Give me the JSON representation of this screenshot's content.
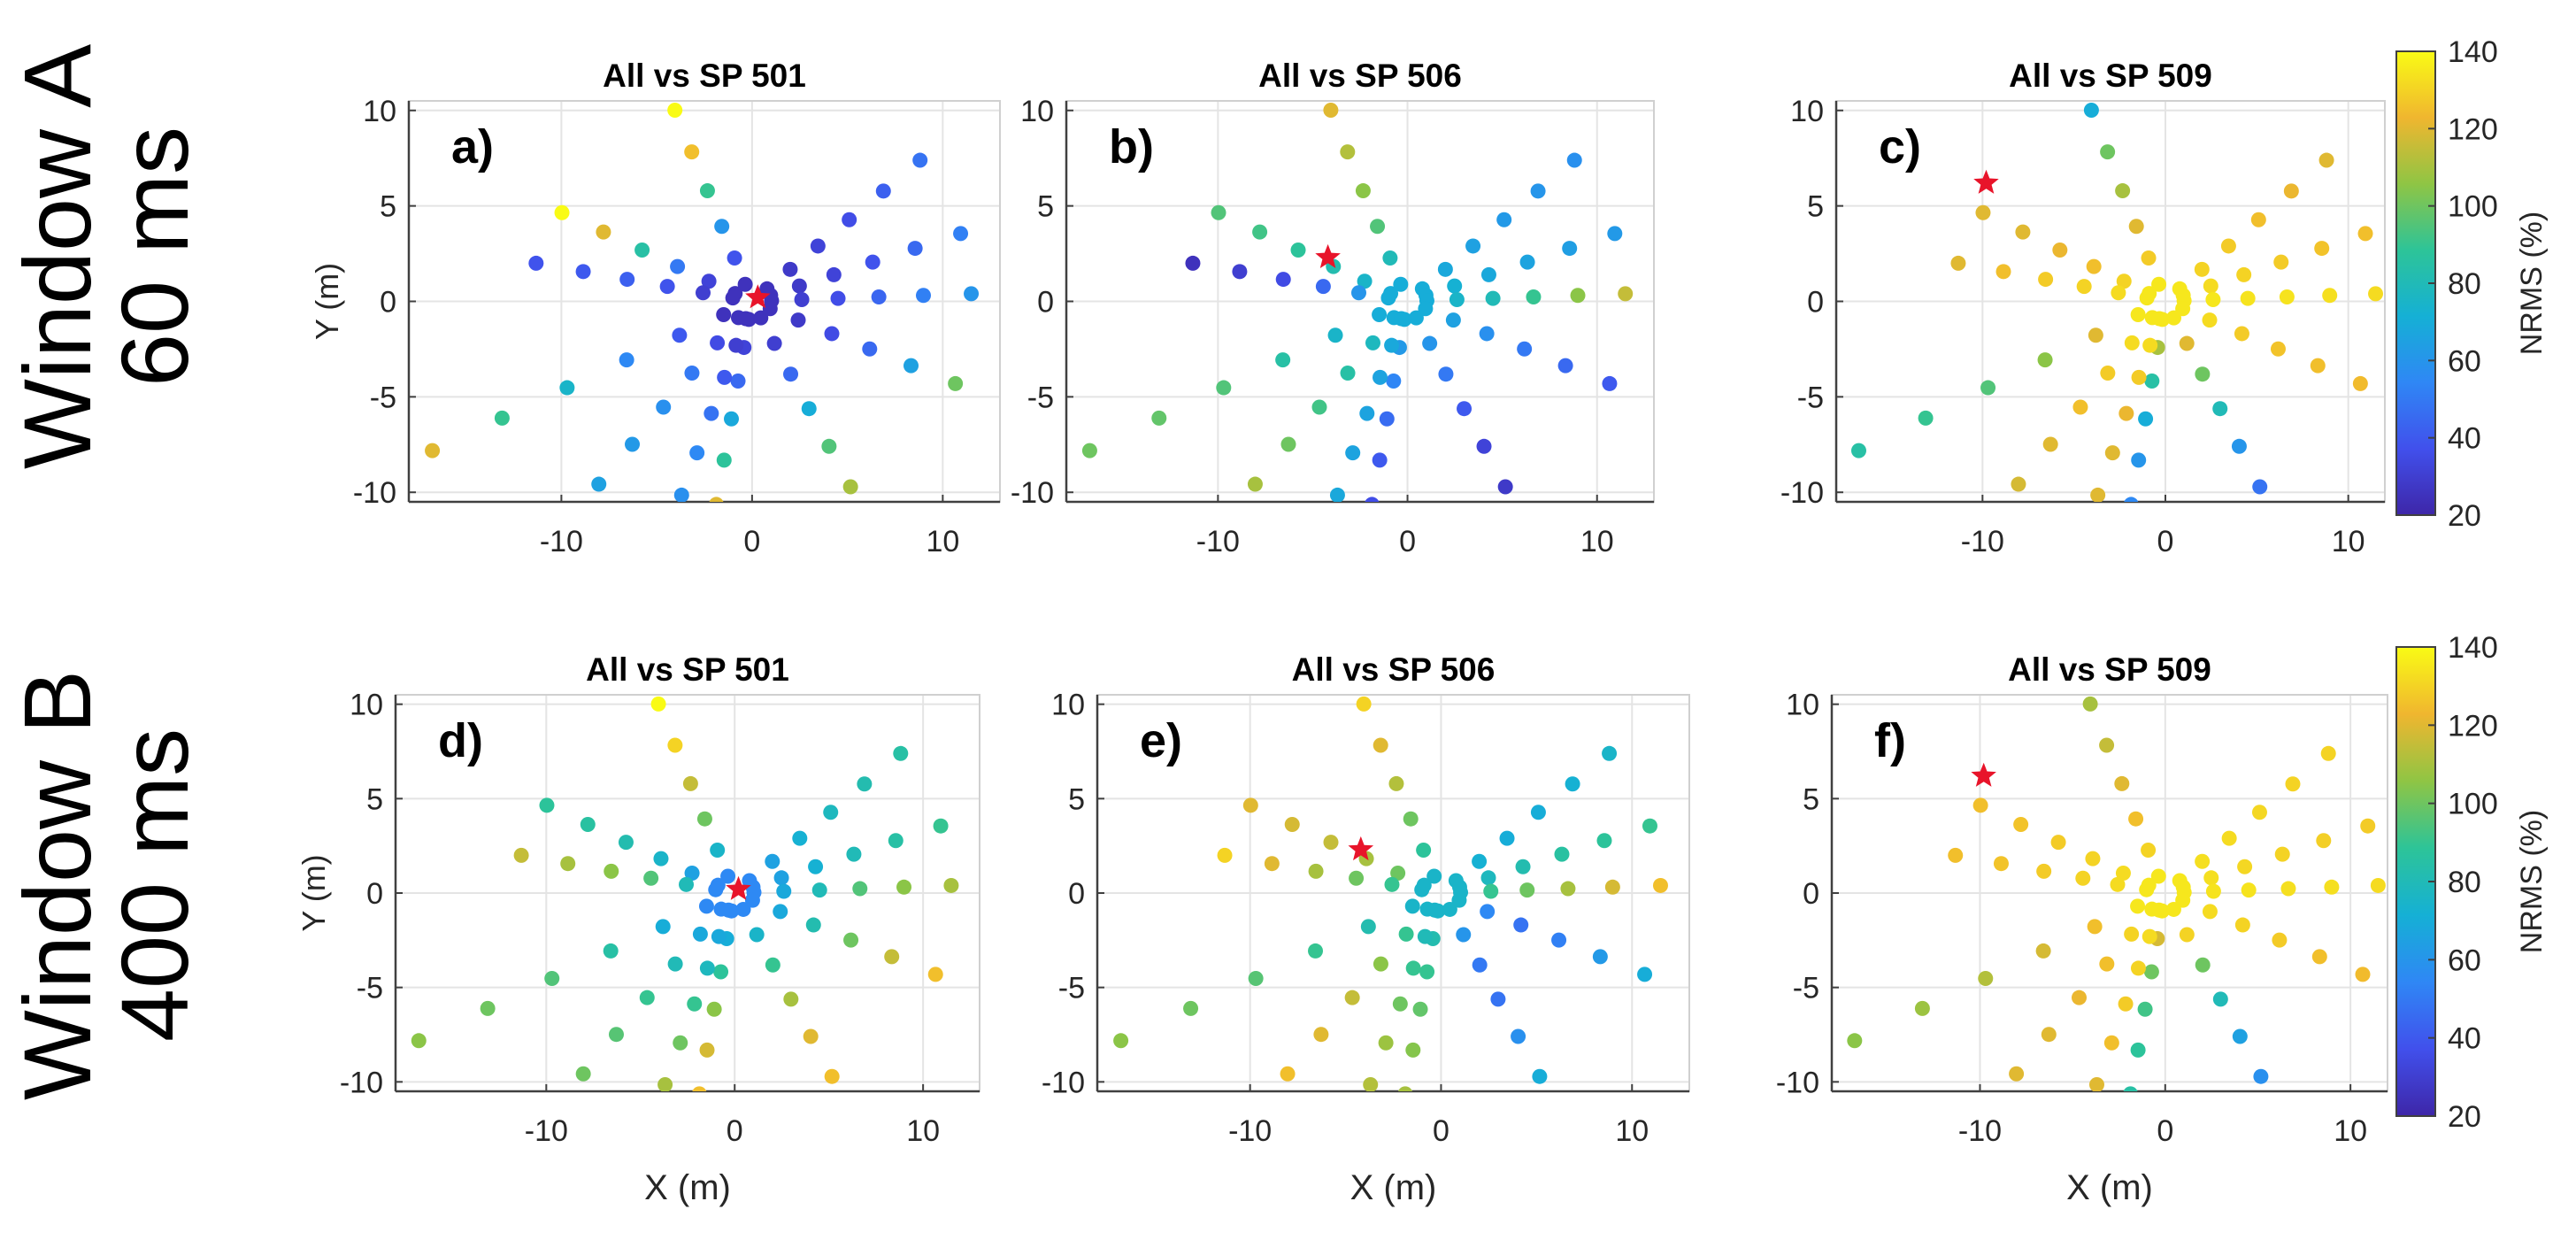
{
  "figure": {
    "rows": [
      {
        "line1": "Window A",
        "line2": "60 ms"
      },
      {
        "line1": "Window B",
        "line2": "400 ms"
      }
    ],
    "colorbar": {
      "label": "NRMS (%)",
      "ticks": [
        "20",
        "40",
        "60",
        "80",
        "100",
        "120",
        "140"
      ],
      "range": [
        20,
        140
      ],
      "colors": [
        "#3e26a8",
        "#4150ec",
        "#2f87f5",
        "#15b0d5",
        "#2dc498",
        "#8fc544",
        "#f0b62f",
        "#f9fb15"
      ]
    },
    "marker_color": "#e8142a"
  },
  "chart_data": [
    {
      "type": "scatter",
      "panel": "a)",
      "title": "All vs SP 501",
      "xlabel": "",
      "ylabel": "Y (m)",
      "xlim": [
        -18,
        13
      ],
      "ylim": [
        -10.5,
        10.5
      ],
      "xticks": [
        "-10",
        "0",
        "10"
      ],
      "yticks": [
        "10",
        "5",
        "0",
        "-5",
        "-10"
      ],
      "source_xy": [
        0.3,
        0.2
      ],
      "arms_nrms": [
        [
          25,
          28,
          32,
          36,
          42,
          48
        ],
        [
          25,
          28,
          32,
          38,
          45,
          52
        ],
        [
          25,
          30,
          36,
          44,
          52,
          60
        ],
        [
          25,
          28,
          35,
          45,
          65,
          100
        ],
        [
          25,
          30,
          45,
          70,
          95,
          110
        ],
        [
          25,
          32,
          45,
          68,
          88,
          120
        ],
        [
          25,
          38,
          60,
          90,
          125,
          140
        ],
        [
          25,
          32,
          50,
          85,
          120,
          140
        ],
        [
          25,
          30,
          38,
          42,
          40,
          38
        ],
        [
          25,
          40,
          55,
          75,
          90,
          120
        ],
        [
          25,
          35,
          50,
          58,
          62,
          65
        ],
        [
          25,
          30,
          40,
          48,
          55,
          58
        ]
      ]
    },
    {
      "type": "scatter",
      "panel": "b)",
      "title": "All vs SP 506",
      "xlabel": "",
      "ylabel": "",
      "xlim": [
        -18,
        13
      ],
      "ylim": [
        -10.5,
        10.5
      ],
      "xticks": [
        "-10",
        "0",
        "10"
      ],
      "yticks": [
        "10",
        "5",
        "0",
        "-5",
        "-10"
      ],
      "source_xy": [
        -4.2,
        2.3
      ],
      "arms_nrms": [
        [
          70,
          68,
          65,
          62,
          60,
          58
        ],
        [
          70,
          72,
          68,
          66,
          64,
          62
        ],
        [
          70,
          75,
          80,
          90,
          105,
          115
        ],
        [
          70,
          65,
          58,
          50,
          45,
          40
        ],
        [
          70,
          60,
          50,
          40,
          32,
          28
        ],
        [
          70,
          62,
          54,
          46,
          40,
          36
        ],
        [
          70,
          80,
          95,
          105,
          112,
          120
        ],
        [
          70,
          75,
          82,
          88,
          92,
          95
        ],
        [
          70,
          60,
          45,
          35,
          30,
          25
        ],
        [
          70,
          75,
          85,
          95,
          98,
          100
        ],
        [
          70,
          78,
          85,
          92,
          100,
          110
        ],
        [
          70,
          68,
          66,
          66,
          66,
          68
        ]
      ]
    },
    {
      "type": "scatter",
      "panel": "c)",
      "title": "All vs SP 509",
      "xlabel": "",
      "ylabel": "",
      "xlim": [
        -18,
        12
      ],
      "ylim": [
        -10.5,
        10.5
      ],
      "xticks": [
        "-10",
        "0",
        "10"
      ],
      "yticks": [
        "10",
        "5",
        "0",
        "-5",
        "-10"
      ],
      "source_xy": [
        -9.8,
        6.2
      ],
      "arms_nrms": [
        [
          135,
          130,
          128,
          125,
          122,
          120
        ],
        [
          135,
          132,
          130,
          128,
          126,
          125
        ],
        [
          135,
          135,
          134,
          134,
          133,
          132
        ],
        [
          135,
          132,
          128,
          126,
          125,
          124
        ],
        [
          135,
          120,
          100,
          80,
          60,
          48
        ],
        [
          135,
          110,
          85,
          70,
          60,
          55
        ],
        [
          135,
          128,
          120,
          110,
          100,
          70
        ],
        [
          135,
          130,
          125,
          122,
          120,
          120
        ],
        [
          135,
          132,
          130,
          128,
          125,
          120
        ],
        [
          135,
          120,
          105,
          95,
          90,
          85
        ],
        [
          135,
          132,
          128,
          125,
          120,
          118
        ],
        [
          135,
          132,
          128,
          122,
          120,
          120
        ]
      ]
    },
    {
      "type": "scatter",
      "panel": "d)",
      "title": "All vs SP 501",
      "xlabel": "X (m)",
      "ylabel": "Y (m)",
      "xlim": [
        -18,
        13
      ],
      "ylim": [
        -10.5,
        10.5
      ],
      "xticks": [
        "-10",
        "0",
        "10"
      ],
      "yticks": [
        "10",
        "5",
        "0",
        "-5",
        "-10"
      ],
      "source_xy": [
        0.2,
        0.2
      ],
      "arms_nrms": [
        [
          55,
          65,
          72,
          78,
          82,
          85
        ],
        [
          55,
          65,
          72,
          80,
          85,
          90
        ],
        [
          55,
          68,
          80,
          95,
          105,
          110
        ],
        [
          55,
          68,
          82,
          100,
          115,
          125
        ],
        [
          55,
          75,
          90,
          110,
          120,
          125
        ],
        [
          55,
          70,
          88,
          105,
          118,
          125
        ],
        [
          55,
          75,
          100,
          115,
          130,
          140
        ],
        [
          55,
          65,
          75,
          82,
          86,
          88
        ],
        [
          55,
          80,
          95,
          105,
          110,
          115
        ],
        [
          55,
          70,
          85,
          95,
          100,
          105
        ],
        [
          55,
          68,
          80,
          90,
          96,
          100
        ],
        [
          55,
          68,
          78,
          90,
          100,
          110
        ]
      ]
    },
    {
      "type": "scatter",
      "panel": "e)",
      "title": "All vs SP 506",
      "xlabel": "X (m)",
      "ylabel": "",
      "xlim": [
        -18,
        13
      ],
      "ylim": [
        -10.5,
        10.5
      ],
      "xticks": [
        "-10",
        "0",
        "10"
      ],
      "yticks": [
        "10",
        "5",
        "0",
        "-5",
        "-10"
      ],
      "source_xy": [
        -4.2,
        2.3
      ],
      "arms_nrms": [
        [
          75,
          72,
          70,
          70,
          72,
          75
        ],
        [
          75,
          78,
          82,
          86,
          88,
          90
        ],
        [
          75,
          90,
          100,
          110,
          118,
          125
        ],
        [
          75,
          55,
          48,
          52,
          62,
          70
        ],
        [
          75,
          60,
          50,
          48,
          58,
          70
        ],
        [
          75,
          82,
          90,
          98,
          104,
          110
        ],
        [
          75,
          88,
          100,
          112,
          120,
          130
        ],
        [
          75,
          100,
          110,
          115,
          118,
          120
        ],
        [
          75,
          90,
          100,
          110,
          120,
          130
        ],
        [
          75,
          82,
          90,
          96,
          100,
          105
        ],
        [
          75,
          90,
          105,
          115,
          120,
          125
        ],
        [
          75,
          80,
          90,
          100,
          108,
          112
        ]
      ]
    },
    {
      "type": "scatter",
      "panel": "f)",
      "title": "All vs SP 509",
      "xlabel": "X (m)",
      "ylabel": "",
      "xlim": [
        -18,
        12
      ],
      "ylim": [
        -10.5,
        10.5
      ],
      "xticks": [
        "-10",
        "0",
        "10"
      ],
      "yticks": [
        "10",
        "5",
        "0",
        "-5",
        "-10"
      ],
      "source_xy": [
        -9.8,
        6.2
      ],
      "arms_nrms": [
        [
          135,
          133,
          132,
          131,
          130,
          130
        ],
        [
          135,
          133,
          131,
          130,
          129,
          128
        ],
        [
          135,
          134,
          134,
          133,
          133,
          132
        ],
        [
          135,
          132,
          130,
          128,
          125,
          124
        ],
        [
          135,
          130,
          100,
          80,
          65,
          58
        ],
        [
          135,
          118,
          100,
          92,
          88,
          85
        ],
        [
          135,
          130,
          125,
          120,
          115,
          110
        ],
        [
          135,
          132,
          130,
          128,
          126,
          125
        ],
        [
          135,
          132,
          130,
          128,
          126,
          125
        ],
        [
          135,
          125,
          118,
          112,
          108,
          105
        ],
        [
          135,
          130,
          125,
          122,
          120,
          120
        ],
        [
          135,
          132,
          130,
          128,
          125,
          120
        ]
      ]
    }
  ]
}
